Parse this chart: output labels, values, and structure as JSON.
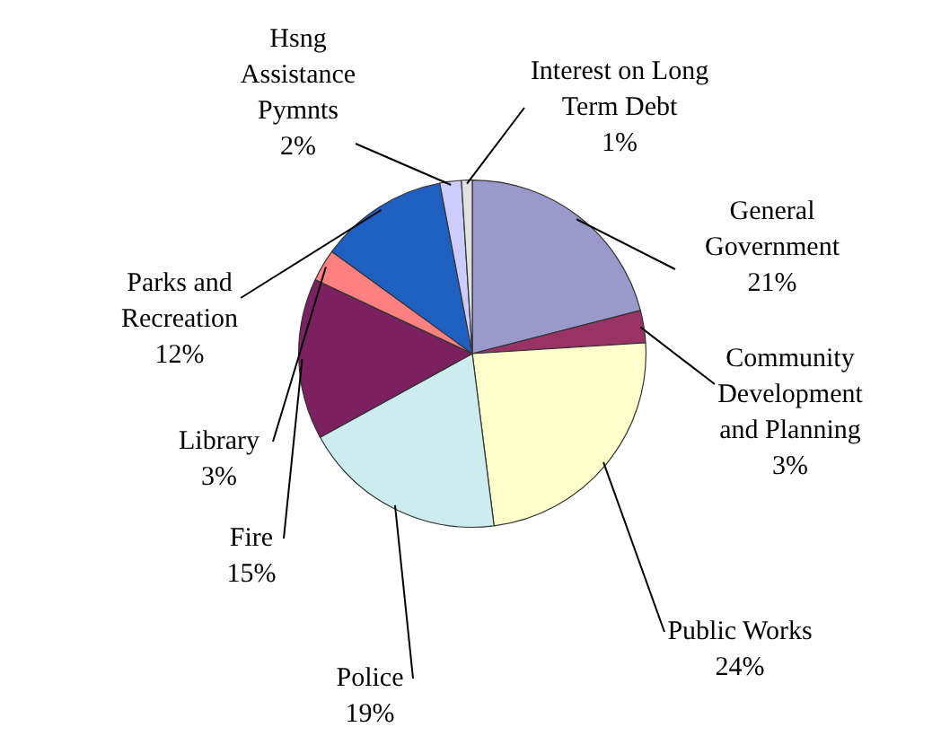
{
  "chart_data": {
    "type": "pie",
    "categories": [
      "General Government",
      "Community Development and Planning",
      "Public Works",
      "Police",
      "Fire",
      "Library",
      "Parks and Recreation",
      "Hsng Assistance Pymnts",
      "Interest on Long Term Debt"
    ],
    "values": [
      21,
      3,
      24,
      19,
      15,
      3,
      12,
      2,
      1
    ],
    "value_labels": [
      "21%",
      "3%",
      "24%",
      "19%",
      "15%",
      "3%",
      "12%",
      "2%",
      "1%"
    ],
    "colors": [
      "#9999cc",
      "#993366",
      "#ffffcc",
      "#ccecf0",
      "#7b2060",
      "#ff8080",
      "#1f5fbf",
      "#ccccff",
      "#e0e0e0"
    ],
    "legend": false
  }
}
